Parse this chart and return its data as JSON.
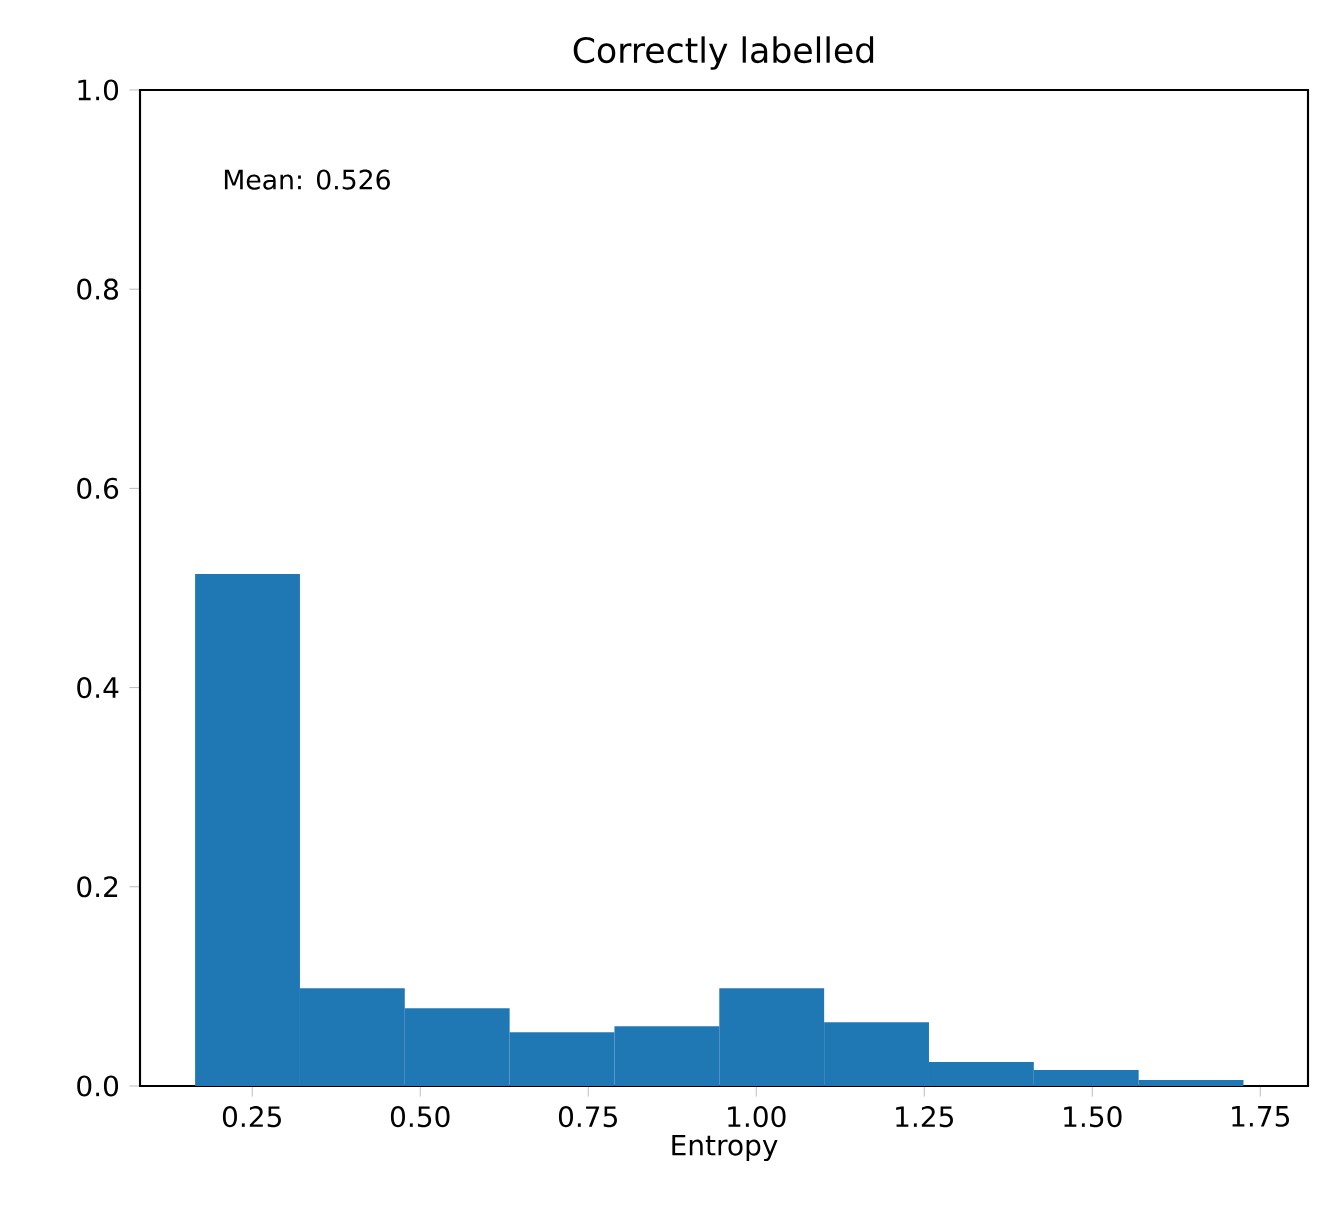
{
  "chart_data": {
    "type": "histogram",
    "title": "Correctly labelled",
    "xlabel": "Entropy",
    "bins": [
      0.165,
      0.321,
      0.477,
      0.633,
      0.789,
      0.945,
      1.101,
      1.257,
      1.413,
      1.569,
      1.725
    ],
    "values": [
      0.514,
      0.098,
      0.078,
      0.054,
      0.06,
      0.098,
      0.064,
      0.024,
      0.016,
      0.006
    ],
    "color": "#1f77b4",
    "xlim": [
      0.083,
      1.821
    ],
    "ylim": [
      0,
      1
    ],
    "xticks": [
      {
        "value": 0.25,
        "label": "0.25"
      },
      {
        "value": 0.5,
        "label": "0.50"
      },
      {
        "value": 0.75,
        "label": "0.75"
      },
      {
        "value": 1.0,
        "label": "1.00"
      },
      {
        "value": 1.25,
        "label": "1.25"
      },
      {
        "value": 1.5,
        "label": "1.50"
      },
      {
        "value": 1.75,
        "label": "1.75"
      }
    ],
    "yticks": [
      {
        "value": 0.0,
        "label": "0.0"
      },
      {
        "value": 0.2,
        "label": "0.2"
      },
      {
        "value": 0.4,
        "label": "0.4"
      },
      {
        "value": 0.6,
        "label": "0.6"
      },
      {
        "value": 0.8,
        "label": "0.8"
      },
      {
        "value": 1.0,
        "label": "1.0"
      }
    ],
    "annotations": [
      "Mean: 0.526"
    ]
  }
}
